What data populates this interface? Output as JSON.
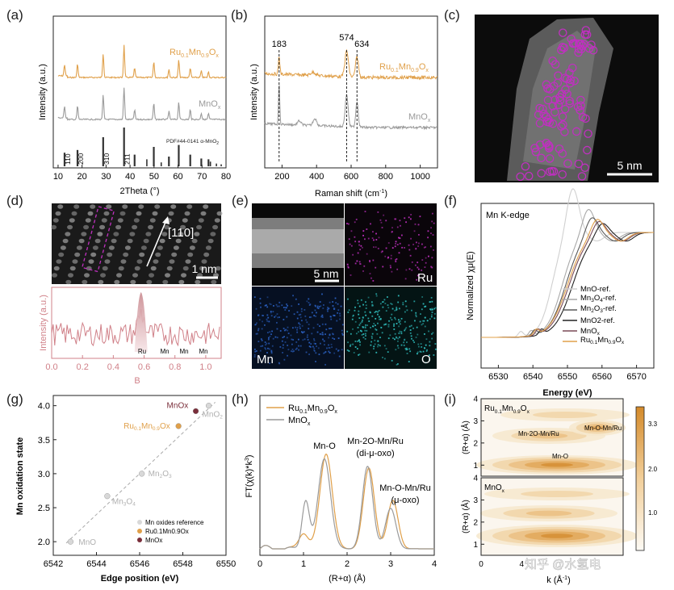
{
  "colors": {
    "ru": "#e0a04a",
    "mno": "#9a9a9a",
    "black": "#222222",
    "pink": "#d08088",
    "magenta": "#c030c0",
    "cyan": "#30c0c0",
    "blue": "#2a5fbf",
    "maroon": "#7a2e3a"
  },
  "panel_labels": [
    "(a)",
    "(b)",
    "(c)",
    "(d)",
    "(e)",
    "(f)",
    "(g)",
    "(h)",
    "(i)"
  ],
  "a": {
    "xlabel": "2Theta (°)",
    "ylabel": "Intensity (a.u.)",
    "series": [
      {
        "name": "Ru0.1Mn0.9Ox",
        "label_main": "Ru",
        "label_sub1": "0.1",
        "label_mid": "Mn",
        "label_sub2": "0.9",
        "label_end": "O",
        "label_sub3": "x",
        "peaks": [
          12.7,
          18.1,
          28.8,
          37.5,
          41.9,
          49.9,
          56.2,
          60.3,
          65.1,
          69.7,
          72.7
        ]
      },
      {
        "name": "MnOx",
        "label_main": "MnO",
        "label_sub": "x",
        "peaks": [
          12.7,
          18.1,
          28.8,
          37.5,
          41.9,
          49.9,
          56.2,
          60.3,
          65.1,
          69.7,
          72.7
        ]
      }
    ],
    "ref_label": "PDF#44-0141 α-MnO",
    "ref_sub": "2",
    "ref_peaks": [
      {
        "x": 12.7,
        "h": 0.35
      },
      {
        "x": 18.1,
        "h": 0.42
      },
      {
        "x": 28.8,
        "h": 0.75
      },
      {
        "x": 37.5,
        "h": 1.0
      },
      {
        "x": 41.9,
        "h": 0.3
      },
      {
        "x": 49.9,
        "h": 0.5
      },
      {
        "x": 56.2,
        "h": 0.25
      },
      {
        "x": 60.3,
        "h": 0.55
      },
      {
        "x": 65.1,
        "h": 0.3
      },
      {
        "x": 69.7,
        "h": 0.2
      },
      {
        "x": 72.7,
        "h": 0.18
      }
    ],
    "hkl": [
      {
        "x": 12.7,
        "t": "110"
      },
      {
        "x": 18.1,
        "t": "200"
      },
      {
        "x": 28.8,
        "t": "310"
      },
      {
        "x": 37.5,
        "t": "211"
      }
    ],
    "ticks": [
      10,
      20,
      30,
      40,
      50,
      60,
      70,
      80
    ]
  },
  "b": {
    "xlabel": "Raman shift (cm",
    "xlabel_sup": "-1",
    "xlabel_end": ")",
    "ylabel": "Intensity (a.u.)",
    "peak_labels": [
      "183",
      "574",
      "634"
    ],
    "peak_positions": [
      183,
      574,
      634
    ],
    "series_labels": [
      "Ru0.1Mn0.9Ox",
      "MnOx"
    ],
    "ticks": [
      200,
      400,
      600,
      800,
      1000
    ]
  },
  "c": {
    "scale": "5 nm"
  },
  "d": {
    "direction": "[110]",
    "scale": "1 nm",
    "profile_ylabel": "Intensity (a.u.)",
    "profile_xlabel": "B",
    "profile_ticks": [
      "0.0",
      "0.2",
      "0.4",
      "0.6",
      "0.8",
      "1.0"
    ],
    "atom_labels": [
      "Ru",
      "Mn",
      "Mn",
      "Mn"
    ]
  },
  "e": {
    "scale": "5 nm",
    "maps": [
      "Ru",
      "Mn",
      "O"
    ]
  },
  "f": {
    "title": "Mn K-edge",
    "xlabel": "Energy (eV)",
    "ylabel": "Normalized χμ(E)",
    "ticks": [
      6530,
      6540,
      6550,
      6560,
      6570
    ],
    "legend": [
      "MnO-ref.",
      "Mn3O4-ref.",
      "Mn2O3-ref.",
      "MnO2-ref.",
      "MnOx",
      "Ru0.1Mn0.9Ox"
    ]
  },
  "g": {
    "xlabel": "Edge position (eV)",
    "ylabel": "Mn oxidation state",
    "xticks": [
      6542,
      6544,
      6546,
      6548,
      6550
    ],
    "yticks": [
      "2.0",
      "2.5",
      "3.0",
      "3.5",
      "4.0"
    ],
    "points": [
      {
        "name": "MnO",
        "x": 6542.8,
        "y": 2.0,
        "type": "ref"
      },
      {
        "name": "Mn3O4",
        "x": 6544.5,
        "y": 2.67,
        "type": "ref"
      },
      {
        "name": "Mn2O3",
        "x": 6546.1,
        "y": 3.0,
        "type": "ref"
      },
      {
        "name": "MnO2",
        "x": 6549.2,
        "y": 4.0,
        "type": "ref"
      },
      {
        "name": "Ru0.1Mn0.9Ox",
        "x": 6547.8,
        "y": 3.7,
        "type": "ru"
      },
      {
        "name": "MnOx",
        "x": 6548.6,
        "y": 3.92,
        "type": "mno"
      }
    ],
    "legend": [
      "Mn oxides reference",
      "Ru0.1Mn0.9Ox",
      "MnOx"
    ]
  },
  "h": {
    "xlabel": "(R+α) (Å)",
    "ylabel": "FT(χ(k)*k",
    "ylabel_sup": "3",
    "ylabel_end": ")",
    "xticks": [
      0,
      1,
      2,
      3,
      4
    ],
    "legend": [
      "Ru0.1Mn0.9Ox",
      "MnOx"
    ],
    "annotations": [
      "Mn-O",
      "Mn-2O-Mn/Ru",
      "(di-μ-oxo)",
      "Mn-O-Mn/Ru",
      "(μ-oxo)"
    ]
  },
  "i": {
    "xlabel": "k (Å",
    "xlabel_sup": "-1",
    "xlabel_end": ")",
    "ylabel": "(R+α) (Å)",
    "top_title": "Ru0.1Mn0.9Ox",
    "bottom_title": "MnOx",
    "labels": [
      "Mn-2O-Mn/Ru",
      "Mn-O-Mn/Ru",
      "Mn-O"
    ],
    "yticks": [
      "1",
      "2",
      "3",
      "4"
    ],
    "xticks": [
      "0",
      "4"
    ],
    "colorbar": [
      "3.3",
      "2.0",
      "1.0"
    ],
    "watermark": "知乎 @水氢电"
  }
}
